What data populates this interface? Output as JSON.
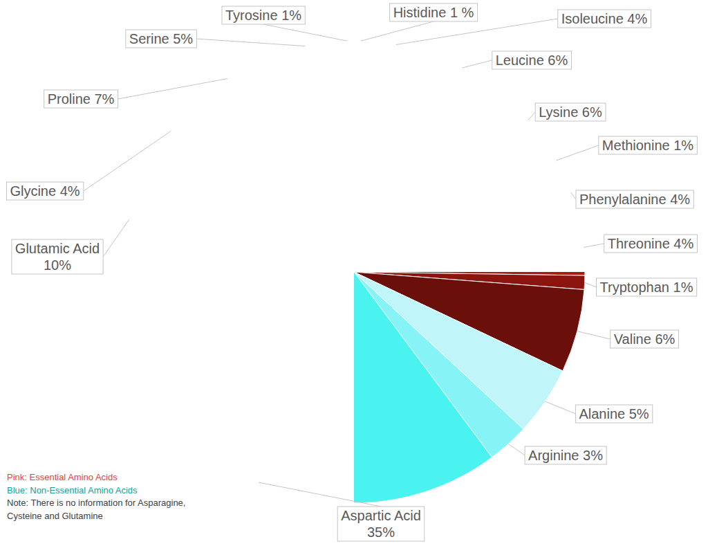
{
  "chart_data": {
    "type": "pie",
    "categories": [
      "Histidine",
      "Isoleucine",
      "Leucine",
      "Lysine",
      "Methionine",
      "Phenylalanine",
      "Threonine",
      "Tryptophan",
      "Valine",
      "Alanine",
      "Arginine",
      "Aspartic Acid",
      "Glutamic Acid",
      "Glycine",
      "Proline",
      "Serine",
      "Tyrosine"
    ],
    "values": [
      1,
      4,
      6,
      6,
      1,
      4,
      4,
      1,
      6,
      5,
      3,
      35,
      10,
      4,
      7,
      5,
      1
    ],
    "value_labels": [
      "1 %",
      "4%",
      "6%",
      "6%",
      "1%",
      "4%",
      "4%",
      "1%",
      "6%",
      "5%",
      "3%",
      "35%",
      "10%",
      "4%",
      "7%",
      "5%",
      "1%"
    ],
    "colors": [
      "#f6a8a5",
      "#f29590",
      "#ef7a72",
      "#ee5a52",
      "#e8443b",
      "#cf251b",
      "#ac1a12",
      "#8b150e",
      "#6b0f0a",
      "#c0f6f9",
      "#86f3f6",
      "#4af2f0",
      "#15ecec",
      "#12c9c8",
      "#0ca4a3",
      "#0a807b",
      "#064f4c"
    ],
    "data_labels": true,
    "annotations": [
      "Pink: Essential Amino Acids",
      "Blue: Non-Essential Amino Acids",
      "Note: There is no information for Asparagine,",
      "Cysteine and Glutamine"
    ]
  }
}
